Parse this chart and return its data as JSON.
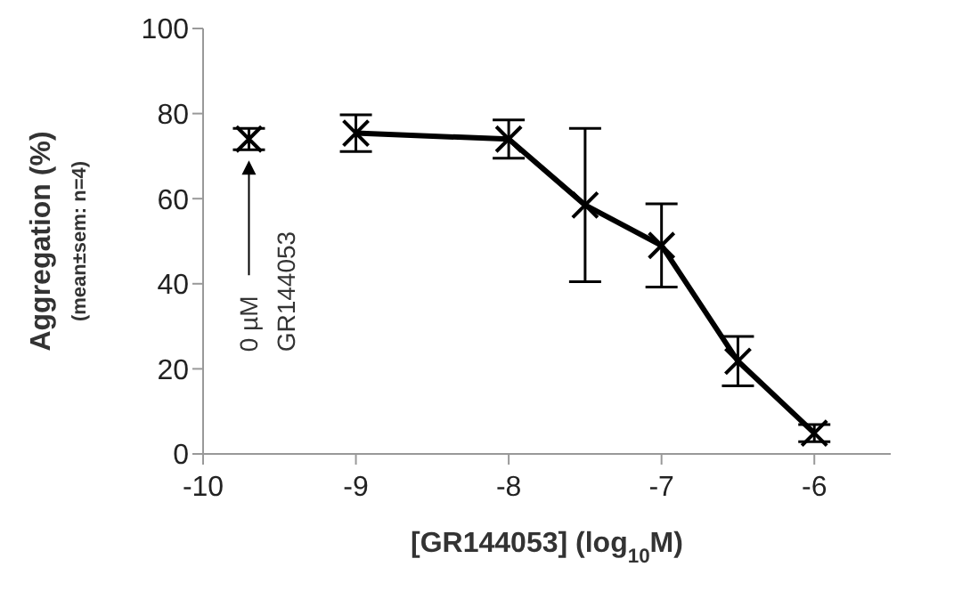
{
  "chart_data": {
    "type": "line",
    "xlabel": "[GR144053] (log$_{10}$M)",
    "ylabel": "Aggregation (%)",
    "annotations": [
      "(mean±sem: n=4)",
      "0 µM\nGR144053"
    ],
    "series": [
      {
        "color": "#000000",
        "x": [
          -9,
          -8,
          -7.5,
          -7,
          -6.5,
          -6
        ],
        "values": [
          75.4,
          74,
          58.5,
          49,
          21.8,
          4.9
        ],
        "errors": [
          4.3,
          4.5,
          18,
          9.8,
          5.8,
          2
        ]
      },
      {
        "type": "scatter",
        "color": "#000000",
        "x": [
          -9.7
        ],
        "values": [
          74
        ],
        "errors": [
          2.5
        ]
      }
    ],
    "xlim": [
      -10,
      -5.5
    ],
    "xticks": [
      -10,
      -9,
      -8,
      -7,
      -6
    ],
    "ylim": [
      0,
      100
    ],
    "yticks": [
      0,
      20,
      40,
      60,
      80,
      100
    ],
    "grid": false,
    "legend": false,
    "marker": "cross"
  }
}
